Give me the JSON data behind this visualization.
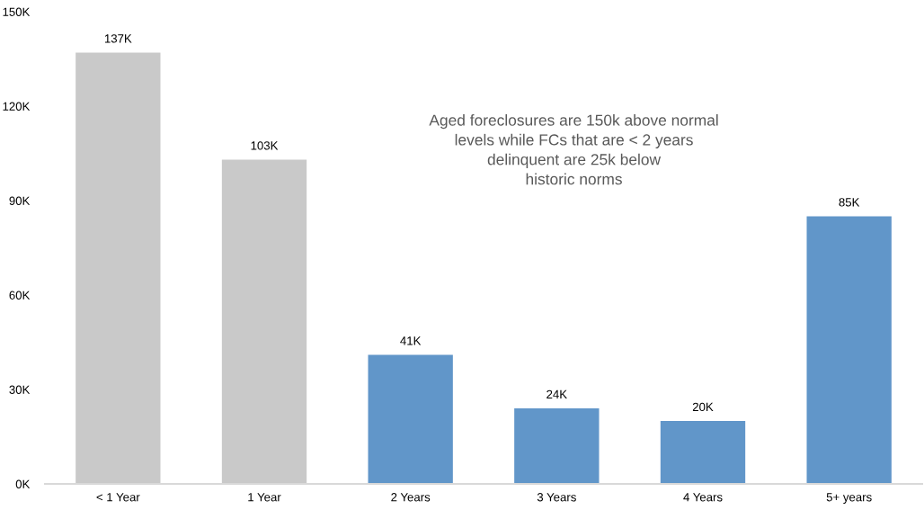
{
  "chart_data": {
    "type": "bar",
    "categories": [
      "< 1 Year",
      "1 Year",
      "2 Years",
      "3 Years",
      "4 Years",
      "5+ years"
    ],
    "values": [
      137,
      103,
      41,
      24,
      20,
      85
    ],
    "colors": [
      "#c9c9c9",
      "#c9c9c9",
      "#6196c9",
      "#6196c9",
      "#6196c9",
      "#6196c9"
    ],
    "value_labels": [
      "137K",
      "103K",
      "41K",
      "24K",
      "20K",
      "85K"
    ],
    "ylim": [
      0,
      150
    ],
    "yticks": [
      {
        "value": 0,
        "label": "0K"
      },
      {
        "value": 30,
        "label": "30K"
      },
      {
        "value": 60,
        "label": "60K"
      },
      {
        "value": 90,
        "label": "90K"
      },
      {
        "value": 120,
        "label": "120K"
      },
      {
        "value": 150,
        "label": "150K"
      }
    ],
    "annotations": [
      "Aged foreclosures are 150k above normal\nlevels while FCs that are < 2 years\ndelinquent are 25k below\nhistoric norms"
    ]
  }
}
